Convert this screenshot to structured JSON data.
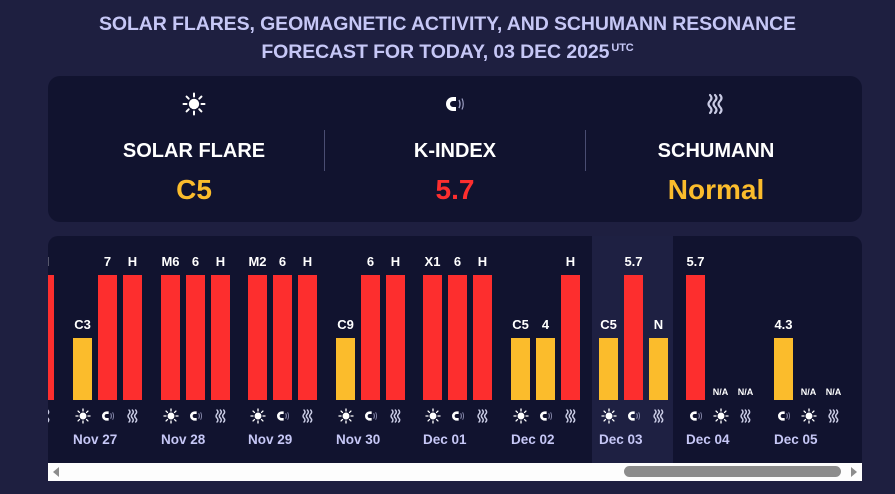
{
  "header": {
    "title_line1": "SOLAR FLARES, GEOMAGNETIC ACTIVITY, AND SCHUMANN RESONANCE",
    "title_line2": "FORECAST FOR TODAY, 03 DEC 2025",
    "timezone": "UTC"
  },
  "summary": {
    "solar_flare": {
      "icon": "sun-icon",
      "label": "SOLAR FLARE",
      "value": "C5",
      "color": "#fbbc2c"
    },
    "k_index": {
      "icon": "magnet-icon",
      "label": "K-INDEX",
      "value": "5.7",
      "color": "#fd2e2e"
    },
    "schumann": {
      "icon": "waves-icon",
      "label": "SCHUMANN",
      "value": "Normal",
      "color": "#fbbc2c"
    }
  },
  "colors": {
    "high": "#fd2e2e",
    "medium": "#fbbc2c",
    "today_highlight": "#1e2042"
  },
  "chart_data": {
    "type": "bar",
    "title": "",
    "legend": [
      "solar flare",
      "k-index",
      "schumann"
    ],
    "levels": {
      "high": 2,
      "medium": 1,
      "none": 0
    },
    "days": [
      {
        "date": "",
        "partial": true,
        "bars": [
          {
            "metric": "schumann",
            "label": "H",
            "level": 2
          }
        ]
      },
      {
        "date": "Nov 27",
        "bars": [
          {
            "metric": "solar_flare",
            "label": "C3",
            "level": 1
          },
          {
            "metric": "k_index",
            "label": "7",
            "level": 2
          },
          {
            "metric": "schumann",
            "label": "H",
            "level": 2
          }
        ]
      },
      {
        "date": "Nov 28",
        "bars": [
          {
            "metric": "solar_flare",
            "label": "M6",
            "level": 2
          },
          {
            "metric": "k_index",
            "label": "6",
            "level": 2
          },
          {
            "metric": "schumann",
            "label": "H",
            "level": 2
          }
        ]
      },
      {
        "date": "Nov 29",
        "bars": [
          {
            "metric": "solar_flare",
            "label": "M2",
            "level": 2
          },
          {
            "metric": "k_index",
            "label": "6",
            "level": 2
          },
          {
            "metric": "schumann",
            "label": "H",
            "level": 2
          }
        ]
      },
      {
        "date": "Nov 30",
        "bars": [
          {
            "metric": "solar_flare",
            "label": "C9",
            "level": 1
          },
          {
            "metric": "k_index",
            "label": "6",
            "level": 2
          },
          {
            "metric": "schumann",
            "label": "H",
            "level": 2
          }
        ]
      },
      {
        "date": "Dec 01",
        "bars": [
          {
            "metric": "solar_flare",
            "label": "X1",
            "level": 2
          },
          {
            "metric": "k_index",
            "label": "6",
            "level": 2
          },
          {
            "metric": "schumann",
            "label": "H",
            "level": 2
          }
        ]
      },
      {
        "date": "Dec 02",
        "bars": [
          {
            "metric": "solar_flare",
            "label": "C5",
            "level": 1
          },
          {
            "metric": "k_index",
            "label": "4",
            "level": 1
          },
          {
            "metric": "schumann",
            "label": "H",
            "level": 2
          }
        ]
      },
      {
        "date": "Dec 03",
        "today": true,
        "bars": [
          {
            "metric": "solar_flare",
            "label": "C5",
            "level": 1
          },
          {
            "metric": "k_index",
            "label": "5.7",
            "level": 2
          },
          {
            "metric": "schumann",
            "label": "N",
            "level": 1
          }
        ]
      },
      {
        "date": "Dec 04",
        "bars": [
          {
            "metric": "k_index",
            "label": "5.7",
            "level": 2
          },
          {
            "metric": "solar_flare",
            "label": "N/A",
            "level": 0
          },
          {
            "metric": "schumann",
            "label": "N/A",
            "level": 0
          }
        ]
      },
      {
        "date": "Dec 05",
        "bars": [
          {
            "metric": "k_index",
            "label": "4.3",
            "level": 1
          },
          {
            "metric": "solar_flare",
            "label": "N/A",
            "level": 0
          },
          {
            "metric": "schumann",
            "label": "N/A",
            "level": 0
          }
        ]
      }
    ]
  },
  "scrollbar": {
    "position_percent": 100
  }
}
